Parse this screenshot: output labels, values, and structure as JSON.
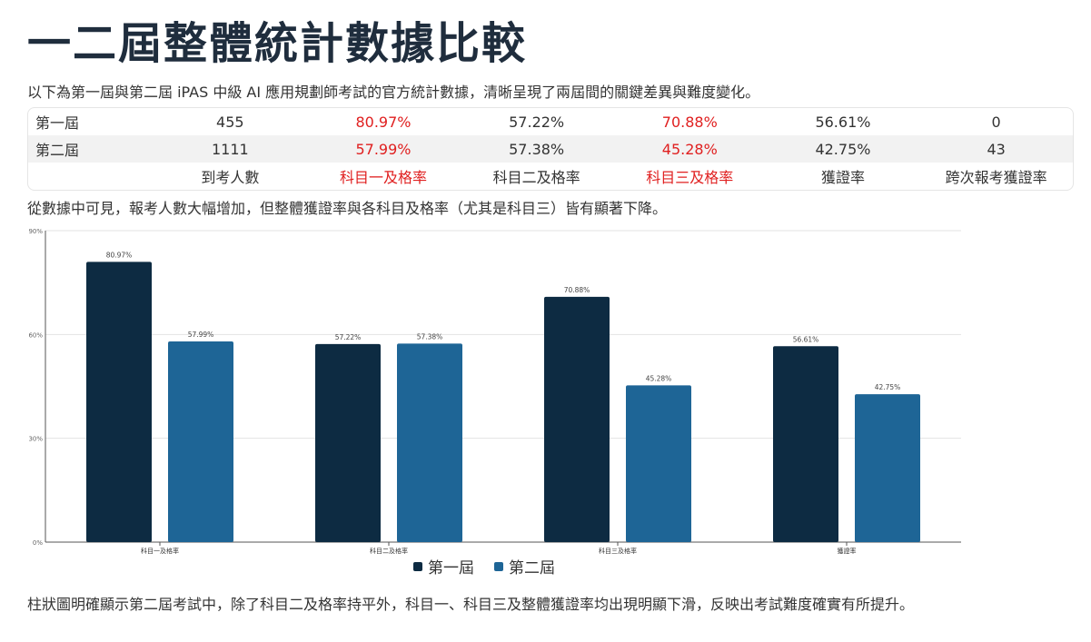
{
  "title": "一二屆整體統計數據比較",
  "intro": "以下為第一屆與第二屆 iPAS 中級 AI 應用規劃師考試的官方統計數據，清晰呈現了兩屆間的關鍵差異與難度變化。",
  "table": {
    "rows": [
      {
        "label": "第一屆",
        "values": [
          "455",
          "80.97%",
          "57.22%",
          "70.88%",
          "56.61%",
          "0"
        ]
      },
      {
        "label": "第二屆",
        "values": [
          "1111",
          "57.99%",
          "57.38%",
          "45.28%",
          "42.75%",
          "43"
        ]
      }
    ],
    "headers": [
      "到考人數",
      "科目一及格率",
      "科目二及格率",
      "科目三及格率",
      "獲證率",
      "跨次報考獲證率"
    ],
    "highlight_color": "#e02020"
  },
  "note": "從數據中可見，報考人數大幅增加，但整體獲證率與各科目及格率（尤其是科目三）皆有顯著下降。",
  "chart_data": {
    "type": "bar",
    "categories": [
      "科目一及格率",
      "科目二及格率",
      "科目三及格率",
      "獲證率"
    ],
    "series": [
      {
        "name": "第一屆",
        "values": [
          80.97,
          57.22,
          70.88,
          56.61
        ],
        "labels": [
          "80.97%",
          "57.22%",
          "70.88%",
          "56.61%"
        ],
        "color": "#0d2b42"
      },
      {
        "name": "第二屆",
        "values": [
          57.99,
          57.38,
          45.28,
          42.75
        ],
        "labels": [
          "57.99%",
          "57.38%",
          "45.28%",
          "42.75%"
        ],
        "color": "#1e6596"
      }
    ],
    "ylim": [
      0,
      90
    ],
    "yticks": [
      0,
      30,
      60,
      90
    ],
    "ytick_labels": [
      "0%",
      "30%",
      "60%",
      "90%"
    ],
    "grid": true,
    "legend": "bottom-center"
  },
  "footer": "柱狀圖明確顯示第二屆考試中，除了科目二及格率持平外，科目一、科目三及整體獲證率均出現明顯下滑，反映出考試難度確實有所提升。"
}
